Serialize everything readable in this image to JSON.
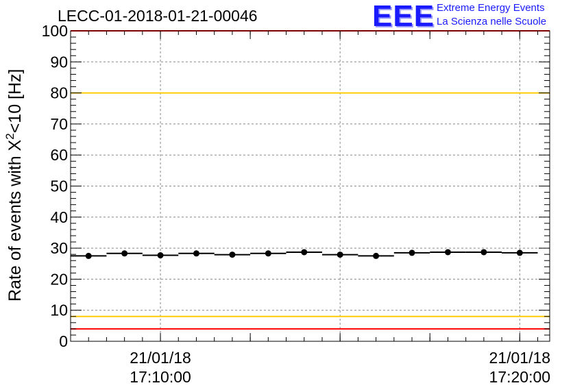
{
  "header": {
    "run_id": "LECC-01-2018-01-21-00046",
    "logo_text": "EEE",
    "logo_line1": "Extreme Energy Events",
    "logo_line2": "La Scienza nelle Scuole"
  },
  "chart_data": {
    "type": "scatter",
    "title": "LECC-01-2018-01-21-00046",
    "ylabel_main": "Rate of events with X",
    "ylabel_sup": "2",
    "ylabel_tail": "<10 [Hz]",
    "ylim": [
      0,
      100
    ],
    "yticks": [
      0,
      10,
      20,
      30,
      40,
      50,
      60,
      70,
      80,
      90,
      100
    ],
    "xlim": [
      "17:07:30",
      "17:20:50"
    ],
    "xticks": [
      {
        "date": "21/01/18",
        "time": "17:10:00"
      },
      {
        "date": "21/01/18",
        "time": "17:20:00"
      }
    ],
    "grid": true,
    "series": [
      {
        "x": [
          "17:08:00",
          "17:09:00",
          "17:10:00",
          "17:11:00",
          "17:12:00",
          "17:13:00",
          "17:14:00",
          "17:15:00",
          "17:16:00",
          "17:17:00",
          "17:18:00",
          "17:19:00",
          "17:20:00"
        ],
        "values": [
          27.5,
          28.3,
          27.7,
          28.3,
          27.9,
          28.3,
          28.7,
          27.9,
          27.5,
          28.5,
          28.7,
          28.7,
          28.5
        ],
        "color": "#000000"
      }
    ],
    "reference_lines": [
      {
        "value": 100,
        "color": "#ff0000"
      },
      {
        "value": 80,
        "color": "#ffcc00"
      },
      {
        "value": 8,
        "color": "#ffcc00"
      },
      {
        "value": 4,
        "color": "#ff0000"
      }
    ]
  }
}
